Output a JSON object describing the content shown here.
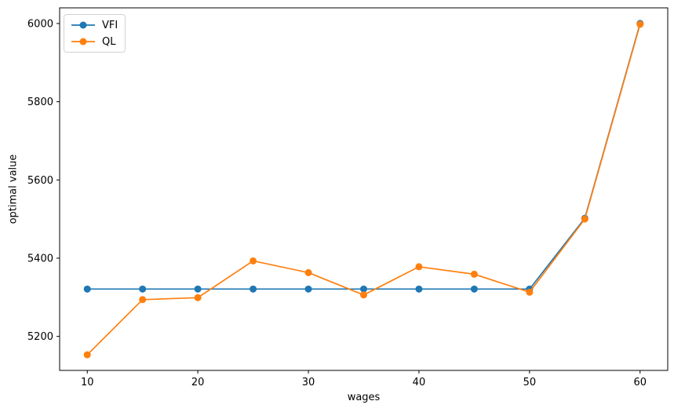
{
  "figure": {
    "background": "#ffffff",
    "text_color": "#000000",
    "spine_color": "#000000"
  },
  "chart_data": {
    "type": "line",
    "title": "",
    "xlabel": "wages",
    "ylabel": "optimal value",
    "x": [
      10,
      15,
      20,
      25,
      30,
      35,
      40,
      45,
      50,
      55,
      60
    ],
    "series": [
      {
        "name": "VFI",
        "color": "#1f77b4",
        "marker": "o",
        "values": [
          5321,
          5321,
          5321,
          5321,
          5321,
          5321,
          5321,
          5321,
          5321,
          5502,
          6000
        ]
      },
      {
        "name": "QL",
        "color": "#ff7f0e",
        "marker": "o",
        "values": [
          5153,
          5294,
          5299,
          5393,
          5363,
          5306,
          5378,
          5359,
          5313,
          5500,
          5998
        ]
      }
    ],
    "xlim": [
      7.5,
      62.5
    ],
    "ylim": [
      5113,
      6040
    ],
    "xticks": [
      10,
      20,
      30,
      40,
      50,
      60
    ],
    "yticks": [
      5200,
      5400,
      5600,
      5800,
      6000
    ],
    "grid": false,
    "legend_position": "upper left"
  }
}
